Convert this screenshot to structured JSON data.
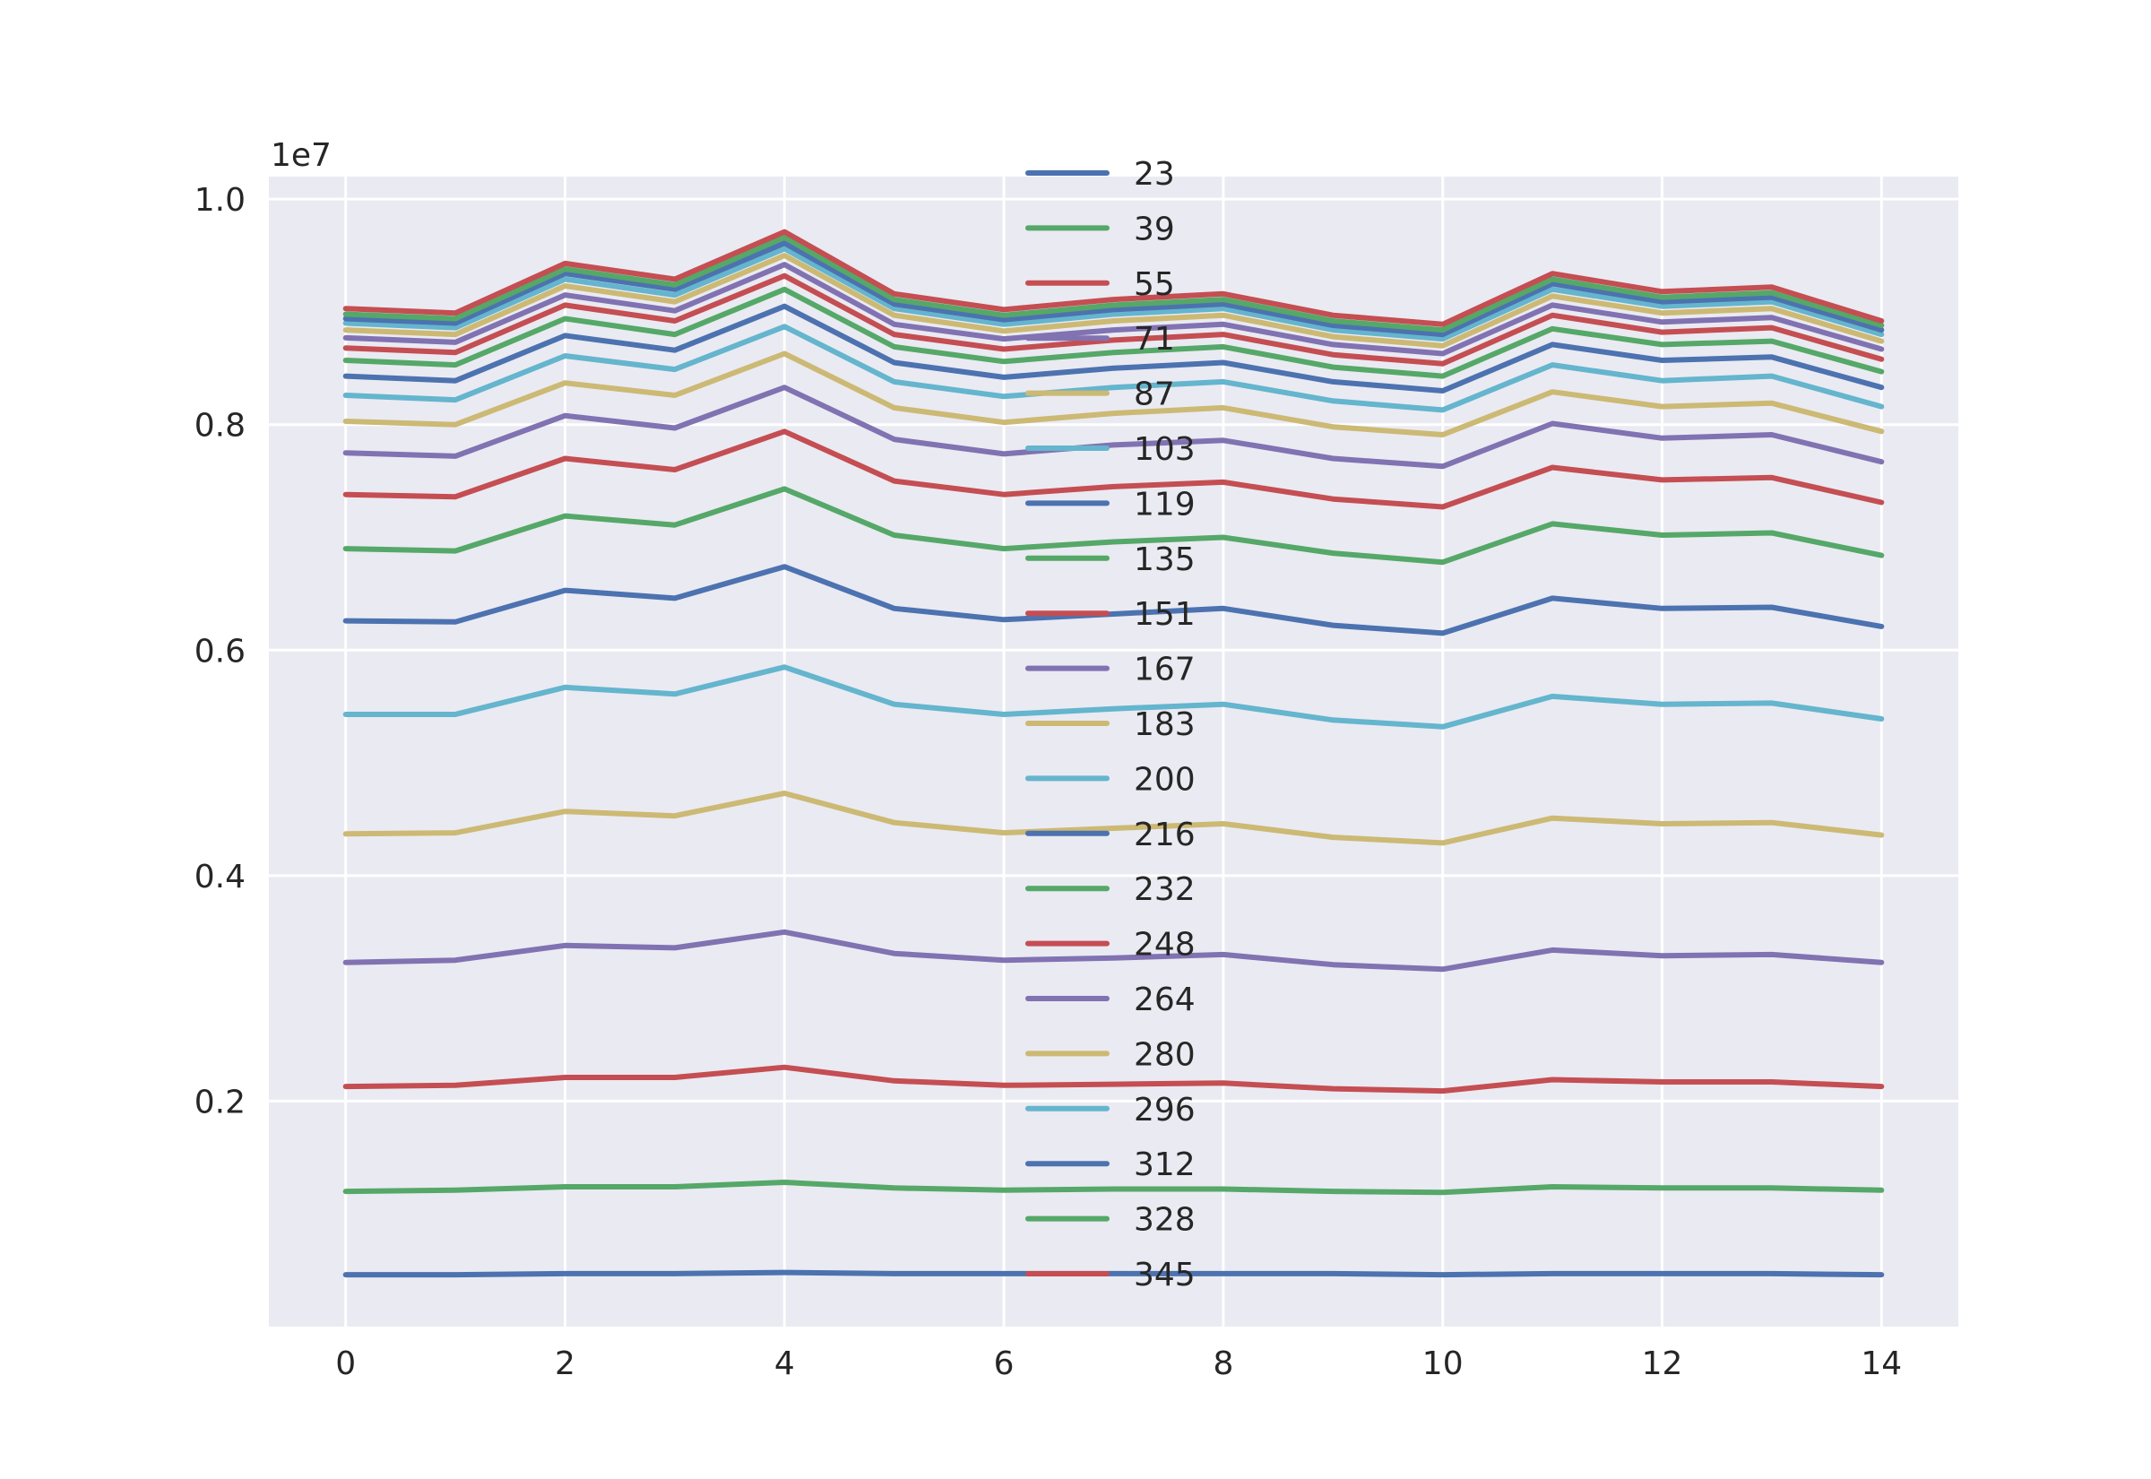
{
  "chart_data": {
    "type": "line",
    "title": "",
    "xlabel": "",
    "ylabel": "",
    "y_exponent_label": "1e7",
    "x": [
      0,
      1,
      2,
      3,
      4,
      5,
      6,
      7,
      8,
      9,
      10,
      11,
      12,
      13,
      14
    ],
    "xlim": [
      -0.7,
      14.7
    ],
    "ylim": [
      0.0,
      1.02
    ],
    "x_ticks": [
      0,
      2,
      4,
      6,
      8,
      10,
      12,
      14
    ],
    "x_tick_labels": [
      "0",
      "2",
      "4",
      "6",
      "8",
      "10",
      "12",
      "14"
    ],
    "y_ticks": [
      0.2,
      0.4,
      0.6,
      0.8,
      1.0
    ],
    "y_tick_labels": [
      "0.2",
      "0.4",
      "0.6",
      "0.8",
      "1.0"
    ],
    "grid": true,
    "legend_position": "top-center",
    "series": [
      {
        "name": "23",
        "color": "#4c72b0",
        "values": [
          0.046,
          0.046,
          0.047,
          0.047,
          0.048,
          0.047,
          0.047,
          0.047,
          0.047,
          0.047,
          0.046,
          0.047,
          0.047,
          0.047,
          0.046
        ]
      },
      {
        "name": "39",
        "color": "#55a868",
        "values": [
          0.12,
          0.121,
          0.124,
          0.124,
          0.128,
          0.123,
          0.121,
          0.122,
          0.122,
          0.12,
          0.119,
          0.124,
          0.123,
          0.123,
          0.121
        ]
      },
      {
        "name": "55",
        "color": "#c44e52",
        "values": [
          0.213,
          0.214,
          0.221,
          0.221,
          0.23,
          0.218,
          0.214,
          0.215,
          0.216,
          0.211,
          0.209,
          0.219,
          0.217,
          0.217,
          0.213
        ]
      },
      {
        "name": "71",
        "color": "#8172b2",
        "values": [
          0.323,
          0.325,
          0.338,
          0.336,
          0.35,
          0.331,
          0.325,
          0.327,
          0.33,
          0.321,
          0.317,
          0.334,
          0.329,
          0.33,
          0.323
        ]
      },
      {
        "name": "87",
        "color": "#ccb974",
        "values": [
          0.437,
          0.438,
          0.457,
          0.453,
          0.473,
          0.447,
          0.438,
          0.442,
          0.446,
          0.434,
          0.429,
          0.451,
          0.446,
          0.447,
          0.436
        ]
      },
      {
        "name": "103",
        "color": "#64b5cd",
        "values": [
          0.543,
          0.543,
          0.567,
          0.561,
          0.585,
          0.552,
          0.543,
          0.548,
          0.552,
          0.538,
          0.532,
          0.559,
          0.552,
          0.553,
          0.539
        ]
      },
      {
        "name": "119",
        "color": "#4c72b0",
        "values": [
          0.626,
          0.625,
          0.653,
          0.646,
          0.674,
          0.637,
          0.627,
          0.632,
          0.637,
          0.622,
          0.615,
          0.646,
          0.637,
          0.638,
          0.621
        ]
      },
      {
        "name": "135",
        "color": "#55a868",
        "values": [
          0.69,
          0.688,
          0.719,
          0.711,
          0.743,
          0.702,
          0.69,
          0.696,
          0.7,
          0.686,
          0.678,
          0.712,
          0.702,
          0.704,
          0.684
        ]
      },
      {
        "name": "151",
        "color": "#c44e52",
        "values": [
          0.738,
          0.736,
          0.77,
          0.76,
          0.794,
          0.75,
          0.738,
          0.745,
          0.749,
          0.734,
          0.727,
          0.762,
          0.751,
          0.753,
          0.731
        ]
      },
      {
        "name": "167",
        "color": "#8172b2",
        "values": [
          0.775,
          0.772,
          0.808,
          0.797,
          0.833,
          0.787,
          0.774,
          0.782,
          0.786,
          0.77,
          0.763,
          0.801,
          0.788,
          0.791,
          0.767
        ]
      },
      {
        "name": "183",
        "color": "#ccb974",
        "values": [
          0.803,
          0.8,
          0.837,
          0.826,
          0.863,
          0.815,
          0.802,
          0.81,
          0.815,
          0.798,
          0.791,
          0.829,
          0.816,
          0.819,
          0.794
        ]
      },
      {
        "name": "200",
        "color": "#64b5cd",
        "values": [
          0.826,
          0.822,
          0.861,
          0.849,
          0.887,
          0.838,
          0.825,
          0.833,
          0.838,
          0.821,
          0.813,
          0.853,
          0.839,
          0.843,
          0.816
        ]
      },
      {
        "name": "216",
        "color": "#4c72b0",
        "values": [
          0.843,
          0.839,
          0.879,
          0.866,
          0.905,
          0.855,
          0.842,
          0.85,
          0.855,
          0.838,
          0.83,
          0.871,
          0.857,
          0.86,
          0.833
        ]
      },
      {
        "name": "232",
        "color": "#55a868",
        "values": [
          0.857,
          0.853,
          0.894,
          0.88,
          0.92,
          0.869,
          0.856,
          0.864,
          0.869,
          0.851,
          0.843,
          0.885,
          0.871,
          0.874,
          0.847
        ]
      },
      {
        "name": "248",
        "color": "#c44e52",
        "values": [
          0.868,
          0.864,
          0.906,
          0.892,
          0.932,
          0.88,
          0.867,
          0.875,
          0.88,
          0.862,
          0.854,
          0.897,
          0.882,
          0.886,
          0.858
        ]
      },
      {
        "name": "264",
        "color": "#8172b2",
        "values": [
          0.877,
          0.873,
          0.915,
          0.901,
          0.942,
          0.889,
          0.876,
          0.884,
          0.889,
          0.871,
          0.863,
          0.906,
          0.891,
          0.895,
          0.867
        ]
      },
      {
        "name": "280",
        "color": "#ccb974",
        "values": [
          0.884,
          0.88,
          0.923,
          0.909,
          0.95,
          0.897,
          0.883,
          0.892,
          0.897,
          0.878,
          0.87,
          0.914,
          0.899,
          0.903,
          0.874
        ]
      },
      {
        "name": "296",
        "color": "#64b5cd",
        "values": [
          0.89,
          0.886,
          0.929,
          0.915,
          0.956,
          0.903,
          0.889,
          0.898,
          0.903,
          0.884,
          0.876,
          0.92,
          0.905,
          0.909,
          0.88
        ]
      },
      {
        "name": "312",
        "color": "#4c72b0",
        "values": [
          0.894,
          0.89,
          0.934,
          0.92,
          0.961,
          0.907,
          0.893,
          0.902,
          0.907,
          0.888,
          0.88,
          0.925,
          0.909,
          0.913,
          0.884
        ]
      },
      {
        "name": "328",
        "color": "#55a868",
        "values": [
          0.898,
          0.894,
          0.938,
          0.924,
          0.966,
          0.911,
          0.897,
          0.906,
          0.911,
          0.892,
          0.884,
          0.929,
          0.913,
          0.917,
          0.888
        ]
      },
      {
        "name": "345",
        "color": "#c44e52",
        "values": [
          0.903,
          0.899,
          0.943,
          0.929,
          0.971,
          0.916,
          0.902,
          0.911,
          0.916,
          0.897,
          0.889,
          0.934,
          0.918,
          0.922,
          0.892
        ]
      }
    ]
  }
}
